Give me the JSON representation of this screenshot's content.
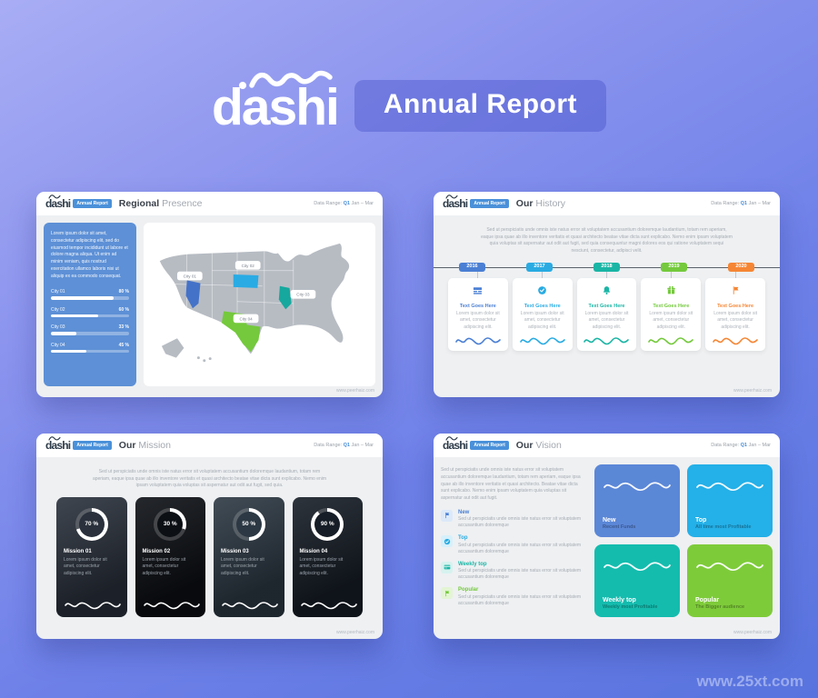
{
  "header": {
    "logo": "dashi",
    "badge": "Annual Report"
  },
  "watermark": "www.25xt.com",
  "common": {
    "brand": "dashi",
    "badge": "Annual Report",
    "range_label": "Data Range:",
    "range_q": "Q1",
    "range_period": "Jan – Mar",
    "url": "www.peerhaiz.com"
  },
  "regional": {
    "title1": "Regional",
    "title2": "Presence",
    "intro": "Lorem ipsum dolor sit amet, consectetur adipiscing elit, sed do eiusmod tempor incididunt ut labore et dolore magna aliqua. Ut enim ad minim veniam, quis nostrud exercitation ullamco laboris nisi ut aliquip ex ea commodo consequat.",
    "bars": [
      {
        "label": "City 01",
        "value": "80 %",
        "pct": 80
      },
      {
        "label": "City 02",
        "value": "60 %",
        "pct": 60
      },
      {
        "label": "City 03",
        "value": "33 %",
        "pct": 33
      },
      {
        "label": "City 04",
        "value": "45 %",
        "pct": 45
      }
    ],
    "pins": [
      {
        "label": "City 01",
        "color": "#4472c8"
      },
      {
        "label": "City 02",
        "color": "#2aabe4"
      },
      {
        "label": "City 03",
        "color": "#16a89e"
      },
      {
        "label": "City 04",
        "color": "#74c93c"
      }
    ]
  },
  "history": {
    "title1": "Our",
    "title2": "History",
    "intro": "Sed ut perspiciatis unde omnis iste natus error sit voluptatem accusantium doloremque laudantium, totam rem aperiam, eaque ipsa quae ab illo inventore veritatis et quasi architecto beatae vitae dicta sunt explicabo. Nemo enim ipsam voluptatem quia voluptas sit aspernatur aut odit aut fugit, sed quia consequuntur magni dolores eos qui ratione voluptatem sequi nesciunt, consectetur, adipisci velit.",
    "items": [
      {
        "year": "2016",
        "color": "#4a7fd4",
        "title": "Text Goes Here",
        "text": "Lorem ipsum dolor sit amet, consectetur adipiscing elit."
      },
      {
        "year": "2017",
        "color": "#29abe2",
        "title": "Text Goes Here",
        "text": "Lorem ipsum dolor sit amet, consectetur adipiscing elit."
      },
      {
        "year": "2018",
        "color": "#1ab5a5",
        "title": "Text Goes Here",
        "text": "Lorem ipsum dolor sit amet, consectetur adipiscing elit."
      },
      {
        "year": "2019",
        "color": "#74c93c",
        "title": "Text Goes Here",
        "text": "Lorem ipsum dolor sit amet, consectetur adipiscing elit."
      },
      {
        "year": "2020",
        "color": "#f58634",
        "title": "Text Goes Here",
        "text": "Lorem ipsum dolor sit amet, consectetur adipiscing elit."
      }
    ]
  },
  "mission": {
    "title1": "Our",
    "title2": "Mission",
    "intro": "Sed ut perspiciatis unde omnis iste natus error sit voluptatem accusantium doloremque laudantium, totam rem aperiam, eaque ipsa quae ab illo inventore veritatis et quasi architecto beatae vitae dicta sunt explicabo. Nemo enim ipsam voluptatem quia voluptas sit aspernatur aut odit aut fugit, sed quia.",
    "cards": [
      {
        "value": "70 %",
        "pct": 70,
        "label": "Mission 01",
        "text": "Lorem ipsum dolor sit amet, consectetur adipiscing elit.",
        "bg": "#2a313c"
      },
      {
        "value": "30 %",
        "pct": 30,
        "label": "Mission 02",
        "text": "Lorem ipsum dolor sit amet, consectetur adipiscing elit.",
        "bg": "#0c0f14"
      },
      {
        "value": "50 %",
        "pct": 50,
        "label": "Mission 03",
        "text": "Lorem ipsum dolor sit amet, consectetur adipiscing elit.",
        "bg": "#2c3843"
      },
      {
        "value": "90 %",
        "pct": 90,
        "label": "Mission 04",
        "text": "Lorem ipsum dolor sit amet, consectetur adipiscing elit.",
        "bg": "#161d26"
      }
    ]
  },
  "vision": {
    "title1": "Our",
    "title2": "Vision",
    "intro": "Sed ut perspiciatis unde omnis iste natus error sit voluptatem accusantium doloremque laudantium, totam rem aperiam, eaque ipsa quae ab illo inventore veritatis et quasi architecto. Beatae vitae dicta sunt explicabo. Nemo enim ipsam voluptatem quia voluptas sit aspernatur aut odit aut fugit.",
    "list": [
      {
        "title": "New",
        "color": "#4a7fd4",
        "tile": "#dbe9f9",
        "text": "Sed ut perspiciatis unde omnis iste natus error sit voluptatem accusantium doloremque"
      },
      {
        "title": "Top",
        "color": "#29abe2",
        "tile": "#d6f0fb",
        "text": "Sed ut perspiciatis unde omnis iste natus error sit voluptatem accusantium doloremque"
      },
      {
        "title": "Weekly top",
        "color": "#1ab5a5",
        "tile": "#d6f2ef",
        "text": "Sed ut perspiciatis unde omnis iste natus error sit voluptatem accusantium doloremque"
      },
      {
        "title": "Popular",
        "color": "#74c93c",
        "tile": "#e3f5d3",
        "text": "Sed ut perspiciatis unde omnis iste natus error sit voluptatem accusantium doloremque"
      }
    ],
    "cards": [
      {
        "title": "New",
        "subtitle": "Recent Funds",
        "color": "#5b87d7"
      },
      {
        "title": "Top",
        "subtitle": "All time most Profitable",
        "color": "#24b0e8"
      },
      {
        "title": "Weekly top",
        "subtitle": "Weekly most Profitable",
        "color": "#14bcae"
      },
      {
        "title": "Popular",
        "subtitle": "The Bigger audience",
        "color": "#7ecb3a"
      }
    ]
  }
}
